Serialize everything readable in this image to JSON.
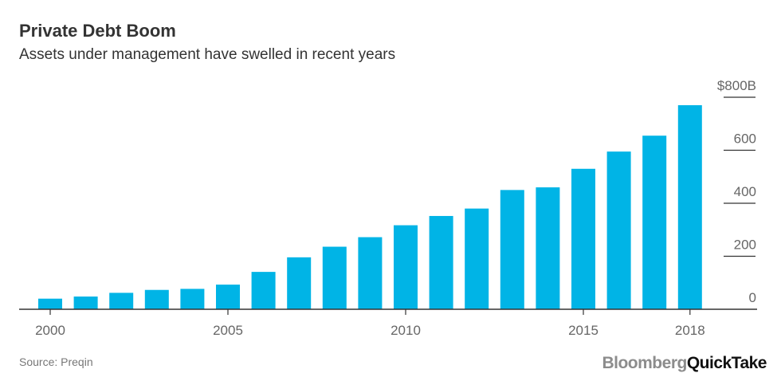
{
  "header": {
    "title": "Private Debt Boom",
    "subtitle": "Assets under management have swelled in recent years"
  },
  "footer": {
    "source": "Source: Preqin",
    "brand_part1": "Bloomberg",
    "brand_part2": "QuickTake"
  },
  "colors": {
    "bar": "#00b4e6",
    "axis": "#333333",
    "tick_text": "#666666"
  },
  "chart_data": {
    "type": "bar",
    "x": [
      2000,
      2001,
      2002,
      2003,
      2004,
      2005,
      2006,
      2007,
      2008,
      2009,
      2010,
      2011,
      2012,
      2013,
      2014,
      2015,
      2016,
      2017,
      2018
    ],
    "values": [
      40,
      48,
      62,
      73,
      77,
      93,
      141,
      196,
      236,
      272,
      317,
      352,
      380,
      450,
      460,
      530,
      595,
      655,
      770
    ],
    "x_tick_labels": [
      "2000",
      "2005",
      "2010",
      "2015",
      "2018"
    ],
    "x_tick_values": [
      2000,
      2005,
      2010,
      2015,
      2018
    ],
    "y_tick_labels": [
      "$800B",
      "600",
      "400",
      "200",
      "0"
    ],
    "y_tick_values": [
      800,
      600,
      400,
      200,
      0
    ],
    "ylim": [
      0,
      800
    ],
    "y_axis_position": "right",
    "grid": false,
    "title": "Private Debt Boom",
    "subtitle": "Assets under management have swelled in recent years"
  }
}
